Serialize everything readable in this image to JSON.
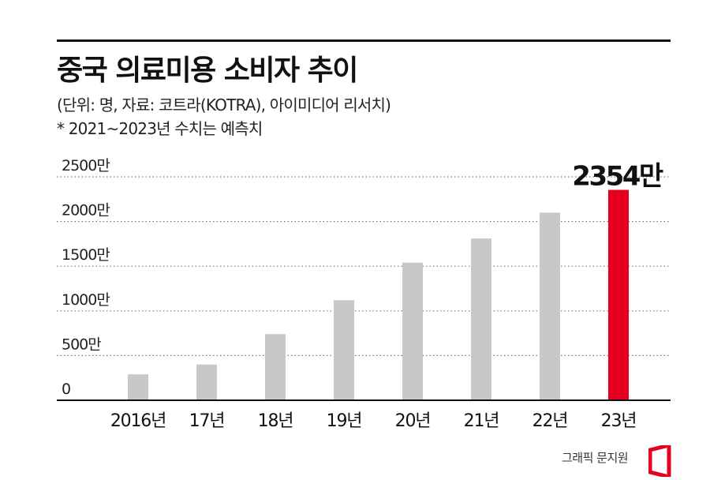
{
  "header": {
    "title": "중국 의료미용 소비자 추이",
    "subtitle": "(단위: 명, 자료: 코트라(KOTRA), 아이미디어 리서치)",
    "note": "* 2021~2023년 수치는 예측치"
  },
  "credit": {
    "text": "그래픽 문지원"
  },
  "chart_data": {
    "type": "bar",
    "categories": [
      "2016년",
      "17년",
      "18년",
      "19년",
      "20년",
      "21년",
      "22년",
      "23년"
    ],
    "values": [
      290,
      400,
      740,
      1120,
      1540,
      1810,
      2100,
      2354
    ],
    "y_tick_labels": [
      "0",
      "500만",
      "1000만",
      "1500만",
      "2000만",
      "2500만"
    ],
    "y_ticks": [
      0,
      500,
      1000,
      1500,
      2000,
      2500
    ],
    "ylim": [
      0,
      2500
    ],
    "unit": "만",
    "highlight": {
      "index": 7,
      "label": "2354만",
      "color": "#e6001f"
    },
    "bar_color": "#c8c8c8",
    "grid": "dotted"
  }
}
